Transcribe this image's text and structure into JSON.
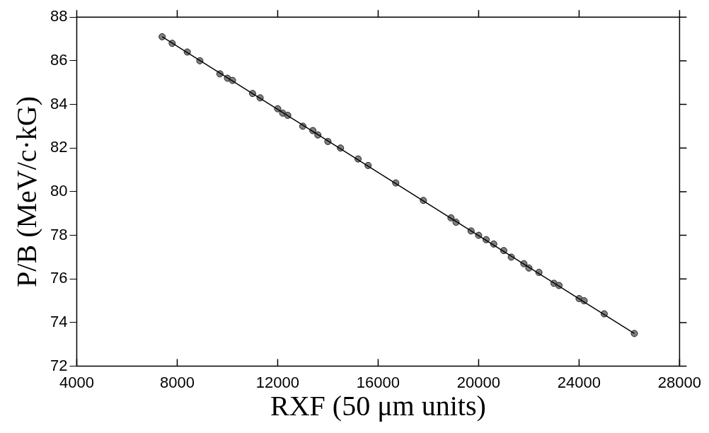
{
  "chart_data": {
    "type": "scatter",
    "xlabel": "RXF (50 μm units)",
    "ylabel": "P/B (MeV/c·kG)",
    "xlim": [
      4000,
      28000
    ],
    "xticks": [
      4000,
      8000,
      12000,
      16000,
      20000,
      24000,
      28000
    ],
    "ylim": [
      72,
      88
    ],
    "yticks": [
      72,
      74,
      76,
      78,
      80,
      82,
      84,
      86,
      88
    ],
    "grid": false,
    "legend": false,
    "series": [
      {
        "marker": "circle",
        "color": "#808080",
        "x": [
          7400,
          7800,
          8400,
          8900,
          9700,
          10000,
          10200,
          11000,
          11300,
          12000,
          12200,
          12400,
          13000,
          13400,
          13600,
          14000,
          14500,
          15200,
          15600,
          16700,
          17800,
          18900,
          19100,
          19700,
          20000,
          20300,
          20600,
          21000,
          21300,
          21800,
          22000,
          22400,
          23000,
          23200,
          24000,
          24200,
          25000,
          26200
        ],
        "values": [
          87.1,
          86.8,
          86.4,
          86.0,
          85.4,
          85.2,
          85.1,
          84.5,
          84.3,
          83.8,
          83.6,
          83.5,
          83.0,
          82.8,
          82.6,
          82.3,
          82.0,
          81.5,
          81.2,
          80.4,
          79.6,
          78.8,
          78.6,
          78.2,
          78.0,
          77.8,
          77.6,
          77.3,
          77.0,
          76.7,
          76.5,
          76.3,
          75.8,
          75.7,
          75.1,
          75.0,
          74.4,
          73.5
        ]
      },
      {
        "type": "line",
        "marker": "none",
        "color": "#000000",
        "x": [
          7400,
          26200
        ],
        "values": [
          87.1,
          73.5
        ]
      }
    ]
  }
}
